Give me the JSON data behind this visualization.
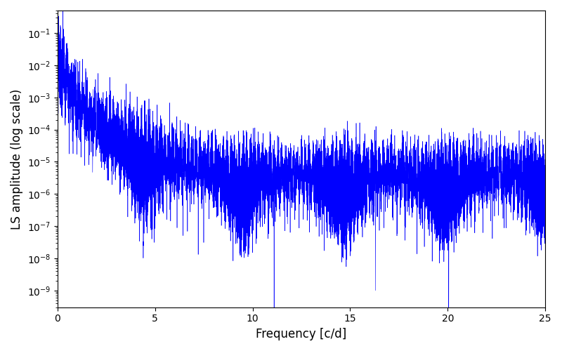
{
  "xlabel": "Frequency [c/d]",
  "ylabel": "LS amplitude (log scale)",
  "line_color": "#0000ff",
  "xlim": [
    0,
    25
  ],
  "ylim": [
    3e-10,
    0.5
  ],
  "xticks": [
    0,
    5,
    10,
    15,
    20,
    25
  ],
  "figsize": [
    8.0,
    5.0
  ],
  "dpi": 100,
  "seed": 1234,
  "n_points": 8000,
  "freq_max": 25.0,
  "background_color": "#ffffff",
  "linewidth": 0.4
}
